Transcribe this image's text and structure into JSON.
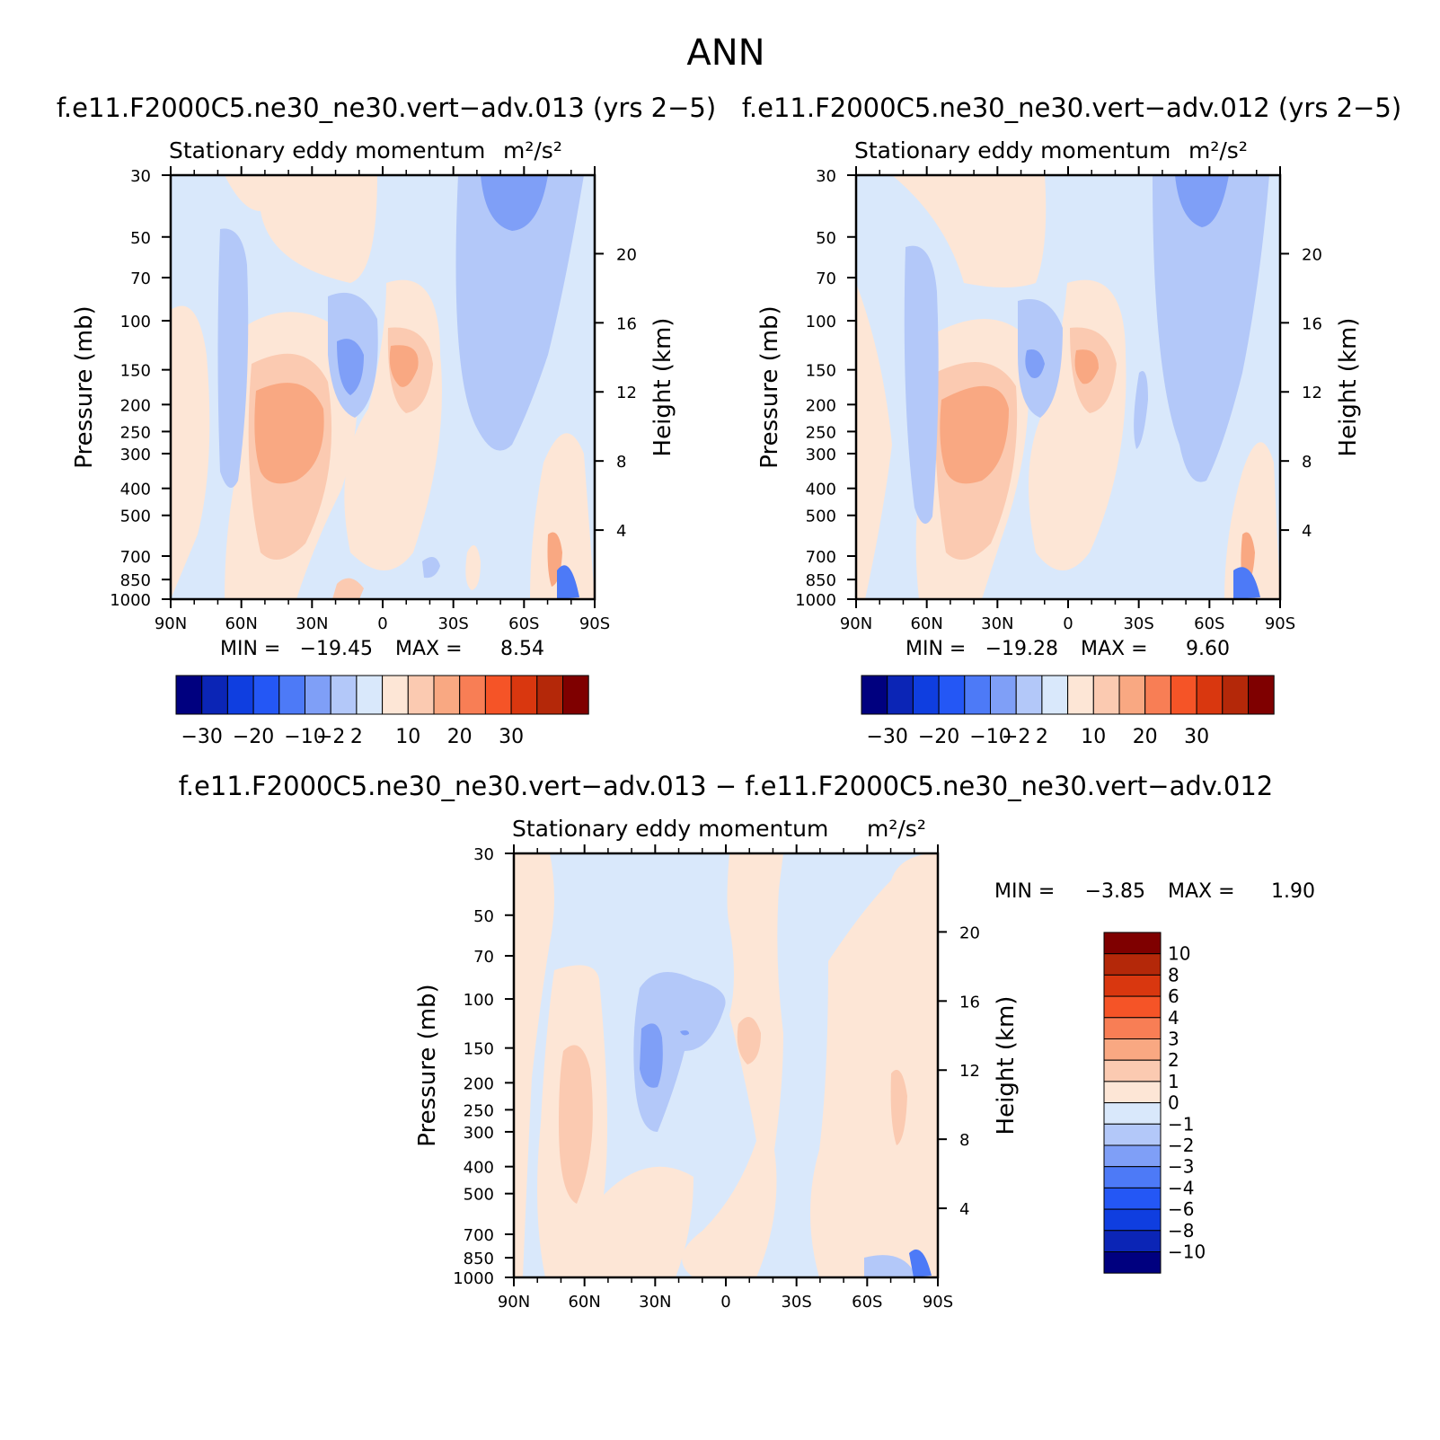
{
  "figure": {
    "title": "ANN"
  },
  "palette": {
    "full": [
      "#00007f",
      "#0b25b6",
      "#0f3ee0",
      "#2457f5",
      "#4d7af7",
      "#7f9ff7",
      "#b3c8f9",
      "#d9e8fb",
      "#fde6d6",
      "#fbcab1",
      "#f9a882",
      "#f87e55",
      "#f55427",
      "#d9370f",
      "#b42809",
      "#7f0000"
    ],
    "diff": [
      "#00007f",
      "#0b25b6",
      "#0f3ee0",
      "#2457f5",
      "#4d7af7",
      "#7f9ff7",
      "#b3c8f9",
      "#d9e8fb",
      "#fde6d6",
      "#fbcab1",
      "#f9a882",
      "#f87e55",
      "#f55427",
      "#d9370f",
      "#b42809",
      "#7f0000"
    ],
    "fill_colors": {
      "neg_light": "#d9e8fb",
      "neg_mid": "#b3c8f9",
      "neg_strong": "#7f9ff7",
      "neg_deep": "#4d7af7",
      "pos_light": "#fde6d6",
      "pos_mid": "#fbcab1",
      "pos_strong": "#f9a882",
      "pos_deep": "#f87e55"
    }
  },
  "chart_data": [
    {
      "type": "heatmap",
      "run_title": "f.e11.F2000C5.ne30_ne30.vert−adv.013 (yrs 2−5)",
      "title": "Stationary eddy momentum",
      "units": "m²/s²",
      "ylabel": "Pressure (mb)",
      "ylabel_right": "Height (km)",
      "x_ticks": [
        "90N",
        "60N",
        "30N",
        "0",
        "30S",
        "60S",
        "90S"
      ],
      "y_ticks": [
        "30",
        "50",
        "70",
        "100",
        "150",
        "200",
        "250",
        "300",
        "400",
        "500",
        "700",
        "850",
        "1000"
      ],
      "y_right_ticks": [
        "20",
        "16",
        "12",
        "8",
        "4"
      ],
      "ylim": [
        1000,
        30
      ],
      "xlim": [
        "90N",
        "90S"
      ],
      "stats": {
        "min_label": "MIN =",
        "min": "−19.45",
        "max_label": "MAX =",
        "max": "8.54"
      },
      "levels": [
        "−30",
        "−20",
        "−10",
        "−2",
        "2",
        "10",
        "20",
        "30"
      ],
      "legend_placement": "below"
    },
    {
      "type": "heatmap",
      "run_title": "f.e11.F2000C5.ne30_ne30.vert−adv.012 (yrs 2−5)",
      "title": "Stationary eddy momentum",
      "units": "m²/s²",
      "ylabel": "Pressure (mb)",
      "ylabel_right": "Height (km)",
      "x_ticks": [
        "90N",
        "60N",
        "30N",
        "0",
        "30S",
        "60S",
        "90S"
      ],
      "y_ticks": [
        "30",
        "50",
        "70",
        "100",
        "150",
        "200",
        "250",
        "300",
        "400",
        "500",
        "700",
        "850",
        "1000"
      ],
      "y_right_ticks": [
        "20",
        "16",
        "12",
        "8",
        "4"
      ],
      "ylim": [
        1000,
        30
      ],
      "xlim": [
        "90N",
        "90S"
      ],
      "stats": {
        "min_label": "MIN =",
        "min": "−19.28",
        "max_label": "MAX =",
        "max": "9.60"
      },
      "levels": [
        "−30",
        "−20",
        "−10",
        "−2",
        "2",
        "10",
        "20",
        "30"
      ],
      "legend_placement": "below"
    },
    {
      "type": "heatmap",
      "run_title": "f.e11.F2000C5.ne30_ne30.vert−adv.013 − f.e11.F2000C5.ne30_ne30.vert−adv.012",
      "title": "Stationary eddy momentum",
      "units": "m²/s²",
      "ylabel": "Pressure (mb)",
      "ylabel_right": "Height (km)",
      "x_ticks": [
        "90N",
        "60N",
        "30N",
        "0",
        "30S",
        "60S",
        "90S"
      ],
      "y_ticks": [
        "30",
        "50",
        "70",
        "100",
        "150",
        "200",
        "250",
        "300",
        "400",
        "500",
        "700",
        "850",
        "1000"
      ],
      "y_right_ticks": [
        "20",
        "16",
        "12",
        "8",
        "4"
      ],
      "ylim": [
        1000,
        30
      ],
      "xlim": [
        "90N",
        "90S"
      ],
      "stats": {
        "min_label": "MIN =",
        "min": "−3.85",
        "max_label": "MAX =",
        "max": "1.90"
      },
      "levels": [
        "10",
        "8",
        "6",
        "4",
        "3",
        "2",
        "1",
        "0",
        "−1",
        "−2",
        "−3",
        "−4",
        "−6",
        "−8",
        "−10"
      ],
      "legend_placement": "right"
    }
  ]
}
